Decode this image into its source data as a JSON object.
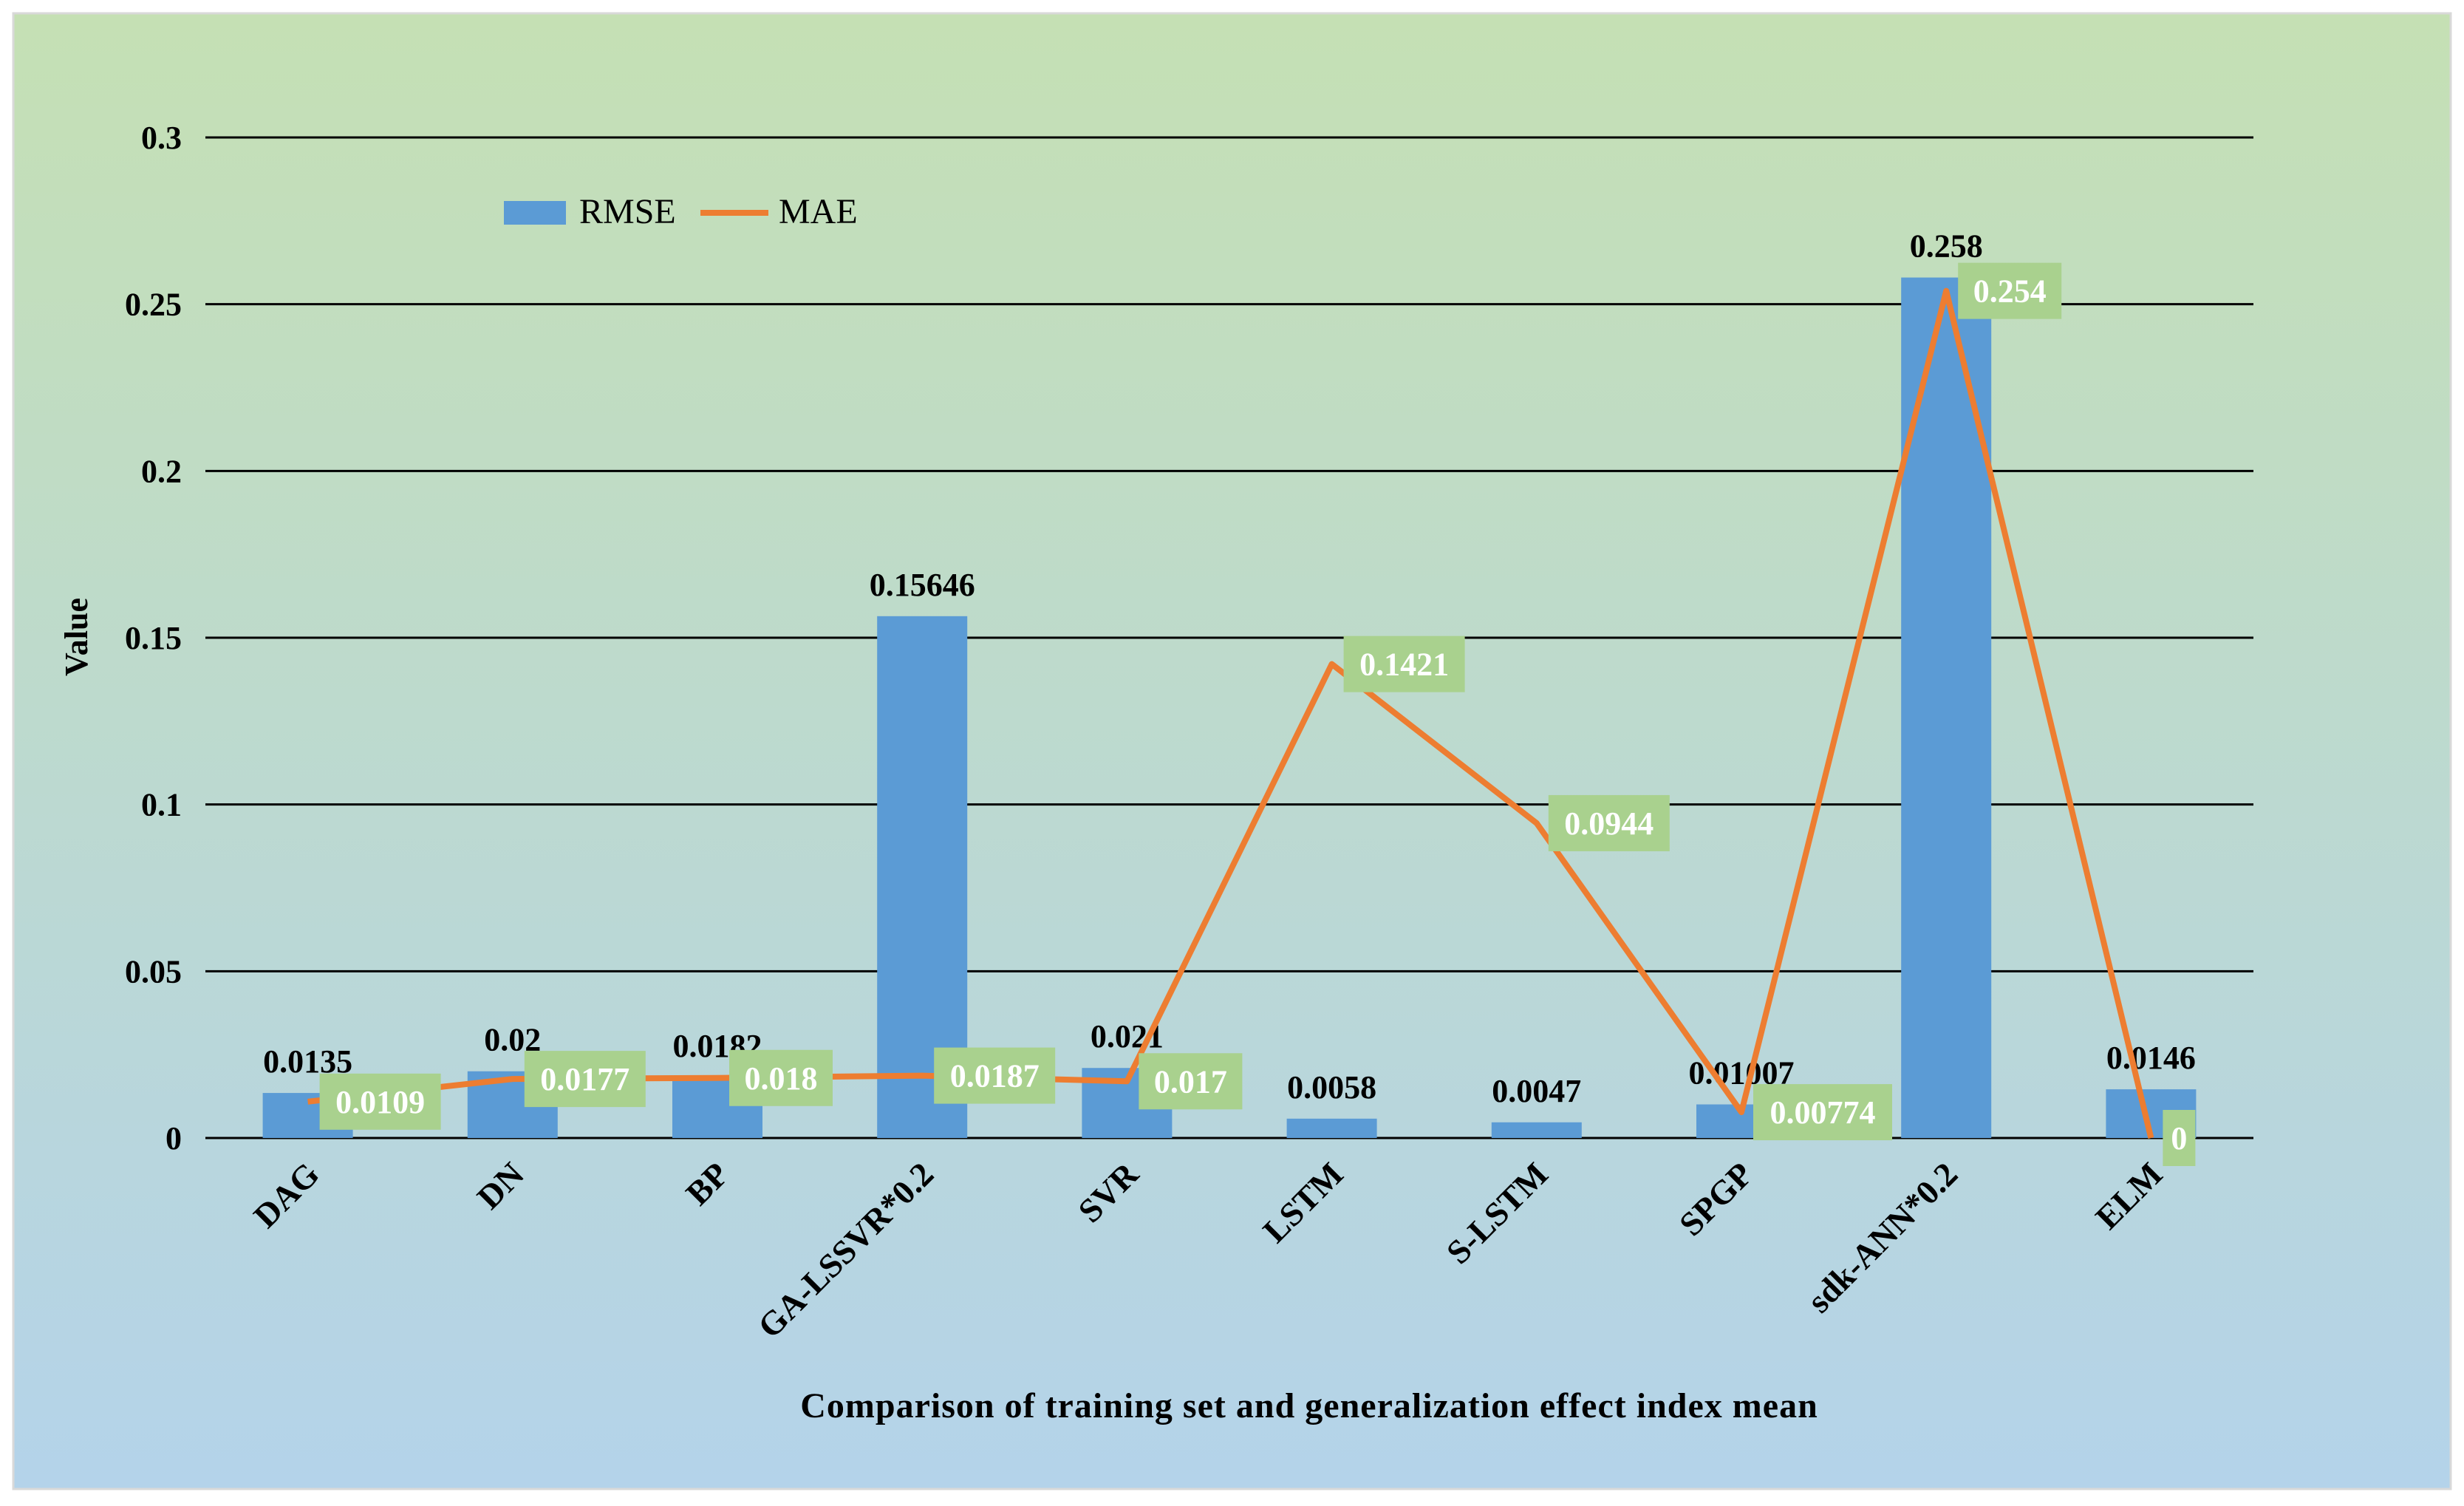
{
  "colors": {
    "rmse": "#5b9bd5",
    "mae": "#ed7d31",
    "mae_label_bg": "#a9d18e",
    "grid": "#000000",
    "bg_top": "#c5e0b4",
    "bg_bottom": "#b4d3ea"
  },
  "chart_data": {
    "type": "bar",
    "title": "",
    "xlabel": "Comparison of training set and generalization effect index mean",
    "ylabel": "Value",
    "ylim": [
      0,
      0.3
    ],
    "yticks": [
      0,
      0.05,
      0.1,
      0.15,
      0.2,
      0.25,
      0.3
    ],
    "ytick_labels": [
      "0",
      "0.05",
      "0.1",
      "0.15",
      "0.2",
      "0.25",
      "0.3"
    ],
    "grid": true,
    "legend_position": "top-left",
    "categories": [
      "DAG",
      "DN",
      "BP",
      "GA-LSSVR*0.2",
      "SVR",
      "LSTM",
      "S-LSTM",
      "SPGP",
      "sdk-ANN*0.2",
      "ELM"
    ],
    "series": [
      {
        "name": "RMSE",
        "type": "bar",
        "values": [
          0.0135,
          0.02,
          0.0182,
          0.15646,
          0.021,
          0.0058,
          0.0047,
          0.01007,
          0.258,
          0.0146
        ],
        "labels": [
          "0.0135",
          "0.02",
          "0.0182",
          "0.15646",
          "0.021",
          "0.0058",
          "0.0047",
          "0.01007",
          "0.258",
          "0.0146"
        ]
      },
      {
        "name": "MAE",
        "type": "line",
        "values": [
          0.0109,
          0.0177,
          0.018,
          0.0187,
          0.017,
          0.1421,
          0.0944,
          0.00774,
          0.254,
          0
        ],
        "labels": [
          "0.0109",
          "0.0177",
          "0.018",
          "0.0187",
          "0.017",
          "0.1421",
          "0.0944",
          "0.00774",
          "0.254",
          "0"
        ]
      }
    ]
  }
}
